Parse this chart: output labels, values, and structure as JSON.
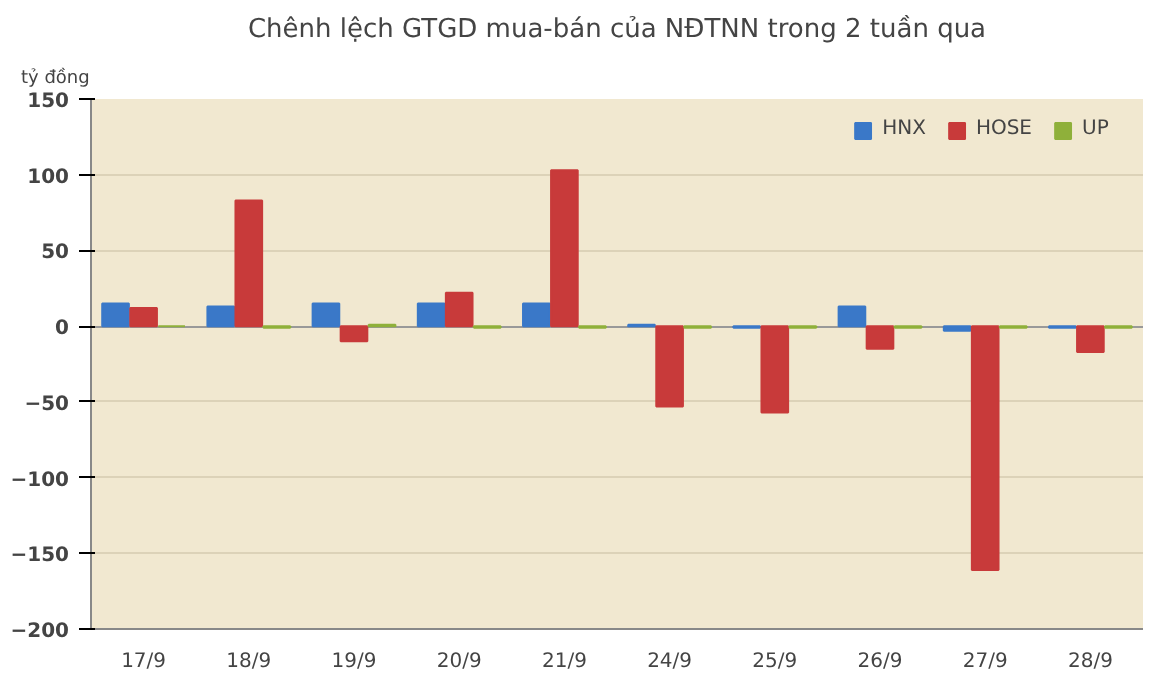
{
  "chart_data": {
    "type": "bar",
    "title": "Chênh lệch GTGD mua-bán của NĐTNN trong 2 tuần qua",
    "ylabel": "tỷ đồng",
    "categories": [
      "17/9",
      "18/9",
      "19/9",
      "20/9",
      "21/9",
      "24/9",
      "25/9",
      "26/9",
      "27/9",
      "28/9"
    ],
    "series": [
      {
        "name": "HNX",
        "color": "#3a78c8",
        "values": [
          15,
          13,
          15,
          15,
          15,
          1,
          -1,
          13,
          -3,
          -1
        ]
      },
      {
        "name": "HOSE",
        "color": "#c83a3a",
        "values": [
          12,
          83,
          -10,
          22,
          103,
          -53,
          -57,
          -15,
          -161,
          -17
        ]
      },
      {
        "name": "UP",
        "color": "#8fb03a",
        "values": [
          0,
          -1,
          1,
          -1,
          -1,
          -1,
          -1,
          -1,
          -1,
          -1
        ]
      }
    ],
    "ylim": [
      -200,
      150
    ],
    "yticks": [
      -200,
      -150,
      -100,
      -50,
      0,
      50,
      100,
      150
    ],
    "grid": "y",
    "legend": "top right"
  }
}
